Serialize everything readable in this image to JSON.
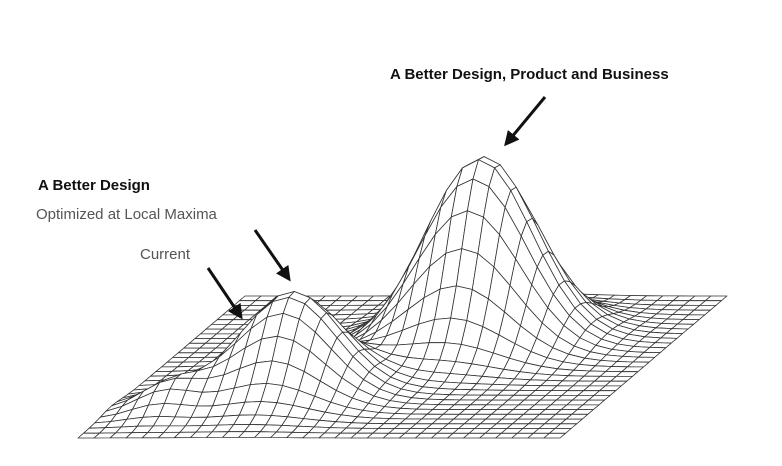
{
  "labels": {
    "global_peak": "A Better Design, Product and Business",
    "better_design": "A Better Design",
    "local_maxima": "Optimized at Local Maxima",
    "current": "Current"
  }
}
